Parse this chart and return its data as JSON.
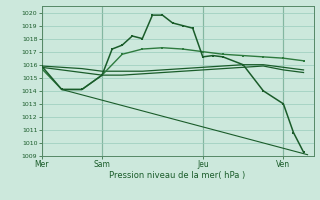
{
  "bg_color": "#cce8dc",
  "grid_color": "#99ccbb",
  "line_color_dark": "#1a5c2a",
  "line_color_medium": "#2d7a3e",
  "xlabel": "Pression niveau de la mer( hPa )",
  "ylim": [
    1009,
    1020.5
  ],
  "yticks": [
    1009,
    1010,
    1011,
    1012,
    1013,
    1014,
    1015,
    1016,
    1017,
    1018,
    1019,
    1020
  ],
  "xtick_labels": [
    "Mer",
    "Sam",
    "Jeu",
    "Ven"
  ],
  "xtick_positions": [
    0,
    3,
    8,
    12
  ],
  "xlim": [
    0,
    13.5
  ],
  "s1x": [
    0,
    1,
    2,
    3,
    4,
    5,
    6,
    7,
    8,
    9,
    10,
    11,
    12,
    13
  ],
  "s1y": [
    1015.9,
    1015.8,
    1015.7,
    1015.5,
    1015.5,
    1015.5,
    1015.6,
    1015.7,
    1015.8,
    1015.9,
    1016.0,
    1016.0,
    1015.8,
    1015.6
  ],
  "s2x": [
    0,
    1,
    2,
    3,
    4,
    5,
    6,
    7,
    8,
    9,
    10,
    11,
    12,
    13
  ],
  "s2y": [
    1015.8,
    1015.6,
    1015.4,
    1015.2,
    1015.2,
    1015.3,
    1015.4,
    1015.5,
    1015.6,
    1015.7,
    1015.8,
    1015.9,
    1015.6,
    1015.4
  ],
  "s3x": [
    0,
    1,
    2,
    3,
    3.5,
    4.0,
    4.5,
    5.0,
    5.5,
    6.0,
    6.5,
    7.0,
    7.5,
    8.0,
    8.5,
    9.0,
    10,
    11,
    12,
    12.5,
    13.0
  ],
  "s3y": [
    1015.9,
    1014.1,
    1014.1,
    1015.2,
    1017.2,
    1017.5,
    1018.2,
    1018.0,
    1019.8,
    1019.8,
    1019.2,
    1019.0,
    1018.8,
    1016.6,
    1016.7,
    1016.6,
    1016.0,
    1014.0,
    1013.0,
    1010.8,
    1009.3
  ],
  "s4x": [
    0,
    1,
    2,
    3,
    4,
    5,
    6,
    7,
    8,
    9,
    10,
    11,
    12,
    13
  ],
  "s4y": [
    1015.7,
    1014.1,
    1014.1,
    1015.2,
    1016.8,
    1017.2,
    1017.3,
    1017.2,
    1017.0,
    1016.8,
    1016.7,
    1016.6,
    1016.5,
    1016.3
  ],
  "sdx": [
    1,
    13.2
  ],
  "sdy": [
    1014.1,
    1009.1
  ],
  "vline_color": "#558866",
  "spine_color": "#558866"
}
